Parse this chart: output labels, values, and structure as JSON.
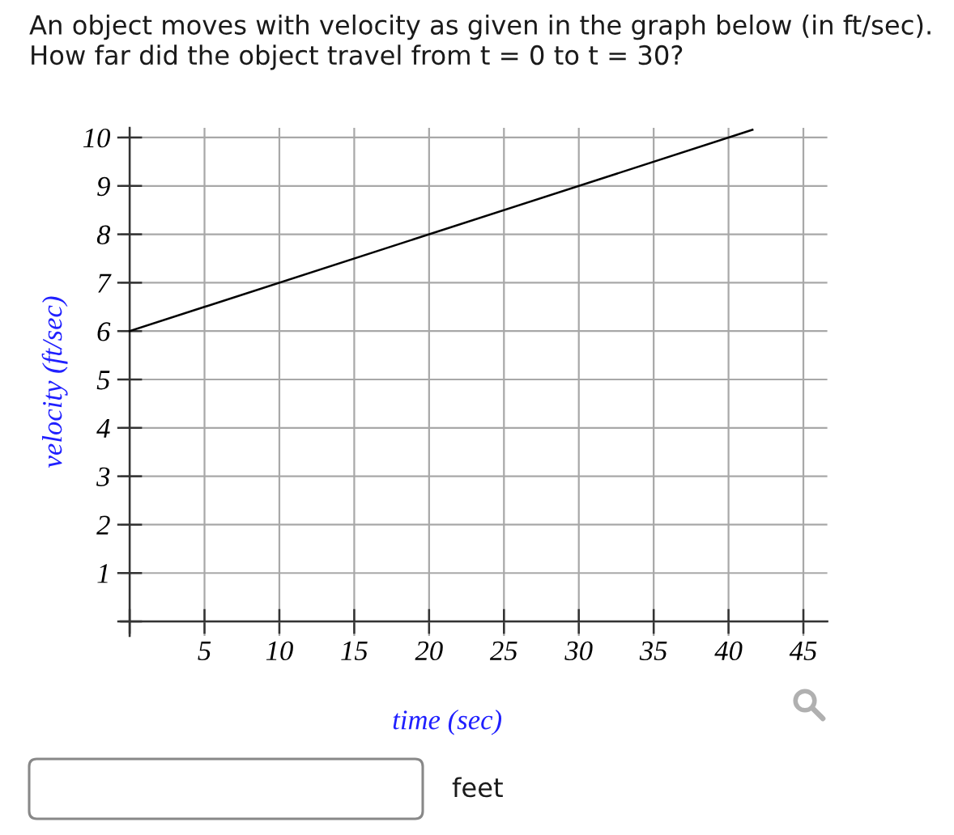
{
  "chart_data": {
    "type": "line",
    "title": "An object moves with velocity as given in the graph below (in ft/sec).\nHow far did the object travel from t = 0 to t = 30?",
    "xlabel": "time (sec)",
    "ylabel": "velocity (ft/sec)",
    "annotations": [
      "feet"
    ],
    "x": [
      0,
      41.6
    ],
    "series": [
      {
        "color": "#000000",
        "values": [
          6,
          10.16
        ]
      }
    ],
    "xlim": [
      -0.6,
      46.6
    ],
    "ylim": [
      -0.3,
      10.2
    ],
    "xticks": [
      {
        "value": 0,
        "label": null
      },
      5,
      10,
      15,
      20,
      25,
      30,
      35,
      40,
      45
    ],
    "yticks": [
      {
        "value": 0,
        "label": null
      },
      1,
      2,
      3,
      4,
      5,
      6,
      7,
      8,
      9,
      10
    ],
    "grid": true,
    "marker": "none",
    "line_style": "solid"
  }
}
